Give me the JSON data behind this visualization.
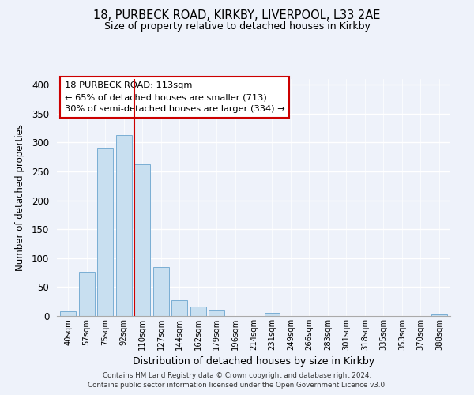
{
  "title1": "18, PURBECK ROAD, KIRKBY, LIVERPOOL, L33 2AE",
  "title2": "Size of property relative to detached houses in Kirkby",
  "xlabel": "Distribution of detached houses by size in Kirkby",
  "ylabel": "Number of detached properties",
  "bar_labels": [
    "40sqm",
    "57sqm",
    "75sqm",
    "92sqm",
    "110sqm",
    "127sqm",
    "144sqm",
    "162sqm",
    "179sqm",
    "196sqm",
    "214sqm",
    "231sqm",
    "249sqm",
    "266sqm",
    "283sqm",
    "301sqm",
    "318sqm",
    "335sqm",
    "353sqm",
    "370sqm",
    "388sqm"
  ],
  "bar_values": [
    8,
    76,
    291,
    313,
    263,
    85,
    28,
    16,
    9,
    0,
    0,
    5,
    0,
    0,
    0,
    0,
    0,
    0,
    0,
    0,
    3
  ],
  "bar_color": "#c8dff0",
  "bar_edge_color": "#7aaed4",
  "red_line_index": 4,
  "annotation_title": "18 PURBECK ROAD: 113sqm",
  "annotation_line1": "← 65% of detached houses are smaller (713)",
  "annotation_line2": "30% of semi-detached houses are larger (334) →",
  "annotation_box_color": "#ffffff",
  "annotation_box_edge": "#cc0000",
  "ylim_max": 410,
  "yticks": [
    0,
    50,
    100,
    150,
    200,
    250,
    300,
    350,
    400
  ],
  "footer1": "Contains HM Land Registry data © Crown copyright and database right 2024.",
  "footer2": "Contains public sector information licensed under the Open Government Licence v3.0.",
  "bg_color": "#eef2fa"
}
